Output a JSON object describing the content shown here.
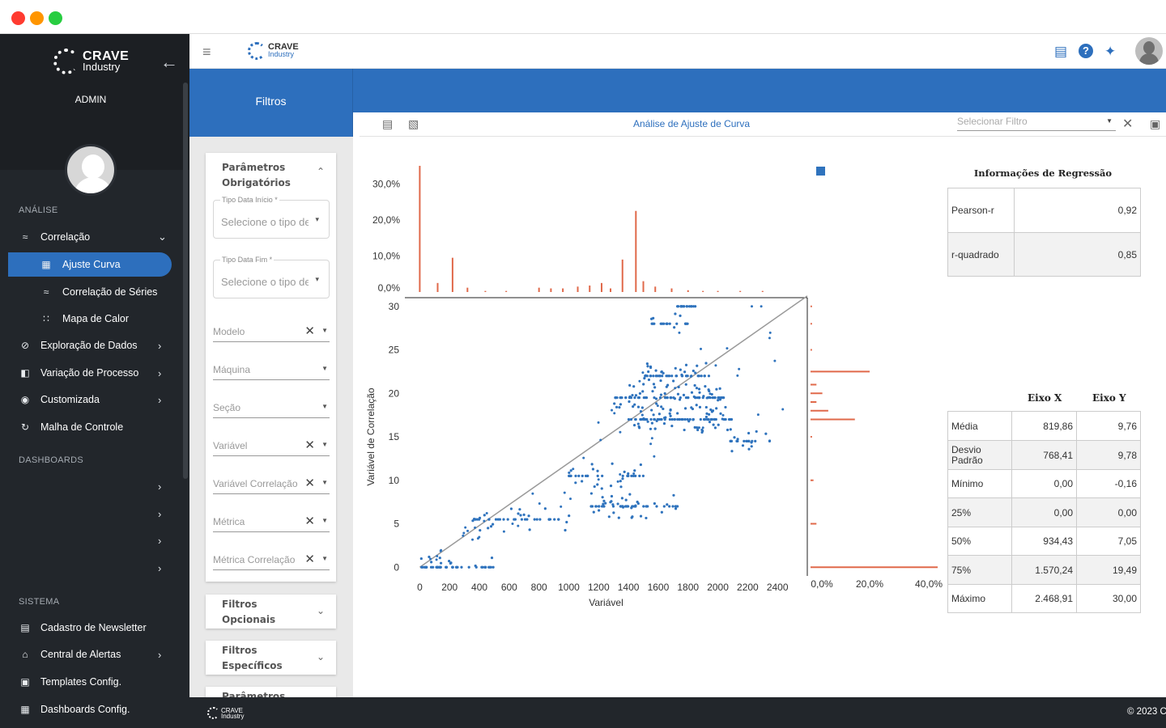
{
  "brand": {
    "name_top": "CRAVE",
    "name_bottom": "Industry"
  },
  "sidebar": {
    "role": "ADMIN",
    "section_analysis": "ANÁLISE",
    "section_dashboards": "DASHBOARDS",
    "section_system": "SISTEMA",
    "analysis_items": [
      {
        "label": "Correlação",
        "icon": "chart-line-icon"
      },
      {
        "label": "Ajuste Curva",
        "icon": "grid-chart-icon"
      },
      {
        "label": "Correlação de Séries",
        "icon": "chart-line-icon"
      },
      {
        "label": "Mapa de Calor",
        "icon": "dots-grid-icon"
      },
      {
        "label": "Exploração de Dados",
        "icon": "compass-icon"
      },
      {
        "label": "Variação de Processo",
        "icon": "variation-icon"
      },
      {
        "label": "Customizada",
        "icon": "palette-icon"
      },
      {
        "label": "Malha de Controle",
        "icon": "loop-icon"
      }
    ],
    "system_items": [
      {
        "label": "Cadastro de Newsletter",
        "icon": "newsletter-icon"
      },
      {
        "label": "Central de Alertas",
        "icon": "bell-icon"
      },
      {
        "label": "Templates Config.",
        "icon": "template-icon"
      },
      {
        "label": "Dashboards Config.",
        "icon": "dashboard-icon"
      }
    ]
  },
  "filters": {
    "title": "Filtros",
    "required_title": "Parâmetros Obrigatórios",
    "start_label": "Tipo Data Início *",
    "start_placeholder": "Selecione o tipo de",
    "end_label": "Tipo Data Fim *",
    "end_placeholder": "Selecione o tipo de",
    "fields": [
      "Modelo",
      "Máquina",
      "Seção",
      "Variável",
      "Variável Correlação",
      "Métrica",
      "Métrica Correlação"
    ],
    "optional_title": "Filtros Opcionais",
    "specific_title": "Filtros Específicos",
    "params_partial": "Parâmetros"
  },
  "panel": {
    "title": "Análise de Ajuste de Curva",
    "select_placeholder": "Selecionar Filtro"
  },
  "regression": {
    "title": "Informações de Regressão",
    "rows": [
      {
        "label": "Pearson-r",
        "value": "0,92"
      },
      {
        "label": "r-quadrado",
        "value": "0,85"
      }
    ]
  },
  "stats": {
    "col_x": "Eixo X",
    "col_y": "Eixo Y",
    "rows": [
      {
        "label": "Média",
        "x": "819,86",
        "y": "9,76"
      },
      {
        "label": "Desvio Padrão",
        "x": "768,41",
        "y": "9,78"
      },
      {
        "label": "Mínimo",
        "x": "0,00",
        "y": "-0,16"
      },
      {
        "label": "25%",
        "x": "0,00",
        "y": "0,00"
      },
      {
        "label": "50%",
        "x": "934,43",
        "y": "7,05"
      },
      {
        "label": "75%",
        "x": "1.570,24",
        "y": "19,49"
      },
      {
        "label": "Máximo",
        "x": "2.468,91",
        "y": "30,00"
      }
    ]
  },
  "footer": {
    "copyright": "© 2023 C"
  },
  "colors": {
    "accent": "#2d6fbd",
    "hist": "#e0694a",
    "point": "#2f73bd",
    "sidebar": "#22262b"
  },
  "chart_data": {
    "type": "scatter",
    "xlabel": "Variável",
    "ylabel": "Variável de Correlação",
    "xlim": [
      -100,
      2600
    ],
    "ylim": [
      -1,
      31
    ],
    "xticks": [
      "0",
      "200",
      "400",
      "600",
      "800",
      "1000",
      "1200",
      "1400",
      "1600",
      "1800",
      "2000",
      "2200",
      "2400"
    ],
    "yticks": [
      "0",
      "5",
      "10",
      "15",
      "20",
      "25",
      "30"
    ],
    "fit_line": [
      [
        0,
        0
      ],
      [
        2600,
        31.2
      ]
    ],
    "clusters": [
      {
        "x": [
          0,
          500
        ],
        "y": 0,
        "n": 50
      },
      {
        "x": [
          350,
          1050
        ],
        "y": 5.5,
        "n": 45
      },
      {
        "x": [
          1150,
          1750
        ],
        "y": 7,
        "n": 70
      },
      {
        "x": [
          1000,
          1500
        ],
        "y": 10.5,
        "n": 40
      },
      {
        "x": [
          1400,
          2100
        ],
        "y": 17,
        "n": 110
      },
      {
        "x": [
          1300,
          2050
        ],
        "y": 19.5,
        "n": 100
      },
      {
        "x": [
          1500,
          1950
        ],
        "y": 22,
        "n": 60
      },
      {
        "x": [
          1550,
          1800
        ],
        "y": 28,
        "n": 20
      },
      {
        "x": [
          1700,
          1850
        ],
        "y": 30,
        "n": 15
      },
      {
        "x": [
          2050,
          2350
        ],
        "y": 14.5,
        "n": 25
      }
    ],
    "top_hist": {
      "yticks": [
        "0,0%",
        "10,0%",
        "20,0%",
        "30,0%"
      ],
      "bars_x": [
        0,
        120,
        220,
        320,
        440,
        580,
        800,
        880,
        960,
        1060,
        1140,
        1220,
        1280,
        1360,
        1450,
        1500,
        1580,
        1690,
        1800,
        1900,
        2000,
        2150,
        2300
      ],
      "bars_pct": [
        35,
        2.5,
        9.5,
        1.2,
        0.3,
        0.3,
        1.2,
        1.0,
        1.0,
        1.5,
        1.8,
        2.5,
        1.0,
        9.0,
        22.5,
        3.0,
        1.5,
        1.0,
        0.5,
        0.3,
        0.3,
        0.3,
        0.3
      ]
    },
    "right_hist": {
      "xticks": [
        "0,0%",
        "20,0%",
        "40,0%"
      ],
      "bars_y": [
        0,
        5,
        10,
        15,
        17,
        18,
        19,
        20,
        21,
        22.5,
        25,
        28,
        30
      ],
      "bars_pct": [
        43,
        2,
        1,
        0.5,
        15,
        6,
        2,
        4,
        2,
        20,
        0.5,
        0.5,
        0.5
      ]
    }
  }
}
